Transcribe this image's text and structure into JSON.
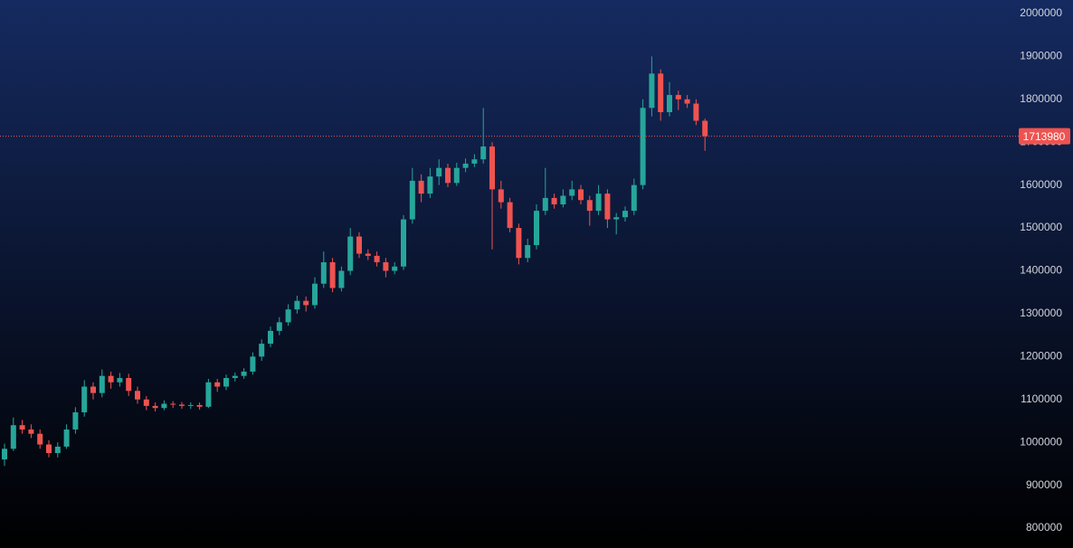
{
  "chart_data": {
    "type": "candlestick",
    "open": [
      960000,
      985000,
      1040000,
      1030000,
      1020000,
      995000,
      975000,
      990000,
      1030000,
      1070000,
      1130000,
      1115000,
      1155000,
      1140000,
      1150000,
      1120000,
      1100000,
      1085000,
      1080000,
      1090000,
      1088000,
      1085000,
      1087000,
      1083000,
      1140000,
      1130000,
      1150000,
      1155000,
      1165000,
      1200000,
      1230000,
      1260000,
      1280000,
      1310000,
      1330000,
      1320000,
      1370000,
      1420000,
      1360000,
      1400000,
      1480000,
      1440000,
      1435000,
      1420000,
      1400000,
      1410000,
      1520000,
      1610000,
      1580000,
      1620000,
      1640000,
      1605000,
      1640000,
      1650000,
      1660000,
      1690000,
      1590000,
      1560000,
      1500000,
      1430000,
      1460000,
      1540000,
      1570000,
      1555000,
      1575000,
      1590000,
      1565000,
      1540000,
      1580000,
      1520000,
      1525000,
      1540000,
      1600000,
      1780000,
      1860000,
      1770000,
      1810000,
      1800000,
      1790000,
      1750000
    ],
    "high": [
      997000,
      1058000,
      1052000,
      1042000,
      1030000,
      1005000,
      1000000,
      1042000,
      1082000,
      1145000,
      1140000,
      1170000,
      1165000,
      1162000,
      1160000,
      1130000,
      1108000,
      1093000,
      1098000,
      1096000,
      1094000,
      1093000,
      1093000,
      1148000,
      1148000,
      1158000,
      1163000,
      1173000,
      1210000,
      1240000,
      1270000,
      1292000,
      1322000,
      1342000,
      1340000,
      1385000,
      1445000,
      1430000,
      1410000,
      1500000,
      1490000,
      1450000,
      1445000,
      1430000,
      1420000,
      1530000,
      1640000,
      1625000,
      1640000,
      1660000,
      1650000,
      1652000,
      1662000,
      1672000,
      1780000,
      1700000,
      1610000,
      1570000,
      1510000,
      1475000,
      1555000,
      1640000,
      1580000,
      1590000,
      1610000,
      1600000,
      1575000,
      1600000,
      1590000,
      1535000,
      1550000,
      1615000,
      1800000,
      1900000,
      1870000,
      1840000,
      1820000,
      1810000,
      1800000,
      1755000
    ],
    "low": [
      945000,
      980000,
      1020000,
      1010000,
      985000,
      965000,
      965000,
      985000,
      1020000,
      1060000,
      1100000,
      1105000,
      1125000,
      1130000,
      1108000,
      1090000,
      1075000,
      1072000,
      1075000,
      1080000,
      1078000,
      1078000,
      1076000,
      1080000,
      1118000,
      1122000,
      1142000,
      1148000,
      1158000,
      1190000,
      1222000,
      1250000,
      1272000,
      1300000,
      1305000,
      1312000,
      1360000,
      1350000,
      1352000,
      1390000,
      1430000,
      1425000,
      1410000,
      1385000,
      1392000,
      1402000,
      1510000,
      1560000,
      1570000,
      1600000,
      1595000,
      1598000,
      1630000,
      1642000,
      1650000,
      1450000,
      1545000,
      1490000,
      1415000,
      1420000,
      1450000,
      1530000,
      1545000,
      1548000,
      1565000,
      1555000,
      1505000,
      1530000,
      1500000,
      1485000,
      1515000,
      1530000,
      1590000,
      1760000,
      1750000,
      1760000,
      1775000,
      1780000,
      1740000,
      1680000
    ],
    "close": [
      985000,
      1040000,
      1030000,
      1020000,
      995000,
      975000,
      990000,
      1030000,
      1070000,
      1130000,
      1115000,
      1155000,
      1140000,
      1150000,
      1120000,
      1100000,
      1085000,
      1080000,
      1090000,
      1088000,
      1085000,
      1087000,
      1083000,
      1140000,
      1130000,
      1150000,
      1155000,
      1165000,
      1200000,
      1230000,
      1260000,
      1280000,
      1310000,
      1330000,
      1320000,
      1370000,
      1420000,
      1360000,
      1400000,
      1480000,
      1440000,
      1435000,
      1420000,
      1400000,
      1410000,
      1520000,
      1610000,
      1580000,
      1620000,
      1640000,
      1605000,
      1640000,
      1650000,
      1660000,
      1690000,
      1590000,
      1560000,
      1500000,
      1430000,
      1460000,
      1540000,
      1570000,
      1555000,
      1575000,
      1590000,
      1565000,
      1540000,
      1580000,
      1520000,
      1525000,
      1540000,
      1600000,
      1780000,
      1860000,
      1770000,
      1810000,
      1800000,
      1790000,
      1750000,
      1713980
    ],
    "up_color": "#26a69a",
    "down_color": "#ef5350",
    "last_price": 1713980,
    "ylim": [
      753600,
      2031600
    ],
    "yticks": [
      800000,
      900000,
      1000000,
      1100000,
      1200000,
      1300000,
      1400000,
      1500000,
      1600000,
      1700000,
      1800000,
      1900000,
      2000000
    ]
  }
}
